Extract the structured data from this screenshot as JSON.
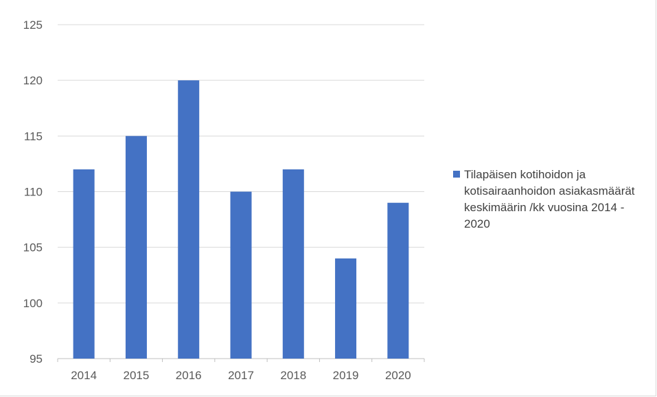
{
  "chart_data": {
    "type": "bar",
    "categories": [
      "2014",
      "2015",
      "2016",
      "2017",
      "2018",
      "2019",
      "2020"
    ],
    "series": [
      {
        "name": "Tilapäisen kotihoidon ja kotisairaanhoidon asiakasmäärät keskimäärin /kk vuosina 2014 - 2020",
        "values": [
          112,
          115,
          120,
          110,
          112,
          104,
          109
        ]
      }
    ],
    "ylim": [
      95,
      125
    ],
    "yticks": [
      "95",
      "100",
      "105",
      "110",
      "115",
      "120",
      "125"
    ],
    "grid": true,
    "legend": "right",
    "colors": {
      "bar": "#4472c4",
      "grid": "#d9d9d9",
      "axis_text": "#595959"
    }
  }
}
